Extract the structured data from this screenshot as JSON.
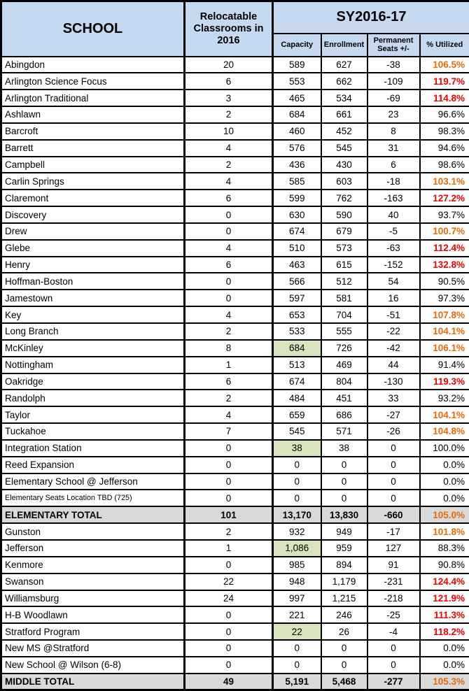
{
  "header": {
    "school": "SCHOOL",
    "relocatable": "Relocatable Classrooms in 2016",
    "sy_group": "SY2016-17",
    "capacity": "Capacity",
    "enrollment": "Enrollment",
    "permanent_seats": "Permanent Seats +/-",
    "utilized": "% Utilized"
  },
  "colors": {
    "header_bg": "#c5d9f1",
    "total_row_bg": "#d9d9d9",
    "capacity_highlight_bg": "#d7e4bc",
    "utilized_over_100_text": "#e26b0a",
    "utilized_over_110_text": "#ee0202",
    "border": "#000000"
  },
  "chart_data": {
    "type": "table",
    "title": "School Relocatable Classrooms and SY2016-17 Capacity / Enrollment / Utilization",
    "column_group": {
      "label": "SY2016-17",
      "spans": [
        "Capacity",
        "Enrollment",
        "Permanent Seats +/-",
        "% Utilized"
      ]
    },
    "columns": [
      "SCHOOL",
      "Relocatable Classrooms in 2016",
      "Capacity",
      "Enrollment",
      "Permanent Seats +/-",
      "% Utilized"
    ],
    "rows": [
      {
        "school": "Abingdon",
        "relocatable": "20",
        "capacity": "589",
        "enrollment": "627",
        "seats": "-38",
        "utilized": "106.5%",
        "util_style": "orange"
      },
      {
        "school": "Arlington Science Focus",
        "relocatable": "6",
        "capacity": "553",
        "enrollment": "662",
        "seats": "-109",
        "utilized": "119.7%",
        "util_style": "red"
      },
      {
        "school": "Arlington Traditional",
        "relocatable": "3",
        "capacity": "465",
        "enrollment": "534",
        "seats": "-69",
        "utilized": "114.8%",
        "util_style": "red"
      },
      {
        "school": "Ashlawn",
        "relocatable": "2",
        "capacity": "684",
        "enrollment": "661",
        "seats": "23",
        "utilized": "96.6%"
      },
      {
        "school": "Barcroft",
        "relocatable": "10",
        "capacity": "460",
        "enrollment": "452",
        "seats": "8",
        "utilized": "98.3%"
      },
      {
        "school": "Barrett",
        "relocatable": "4",
        "capacity": "576",
        "enrollment": "545",
        "seats": "31",
        "utilized": "94.6%"
      },
      {
        "school": "Campbell",
        "relocatable": "2",
        "capacity": "436",
        "enrollment": "430",
        "seats": "6",
        "utilized": "98.6%"
      },
      {
        "school": "Carlin Springs",
        "relocatable": "4",
        "capacity": "585",
        "enrollment": "603",
        "seats": "-18",
        "utilized": "103.1%",
        "util_style": "orange"
      },
      {
        "school": "Claremont",
        "relocatable": "6",
        "capacity": "599",
        "enrollment": "762",
        "seats": "-163",
        "utilized": "127.2%",
        "util_style": "red"
      },
      {
        "school": "Discovery",
        "relocatable": "0",
        "capacity": "630",
        "enrollment": "590",
        "seats": "40",
        "utilized": "93.7%"
      },
      {
        "school": "Drew",
        "relocatable": "0",
        "capacity": "674",
        "enrollment": "679",
        "seats": "-5",
        "utilized": "100.7%",
        "util_style": "orange"
      },
      {
        "school": "Glebe",
        "relocatable": "4",
        "capacity": "510",
        "enrollment": "573",
        "seats": "-63",
        "utilized": "112.4%",
        "util_style": "red"
      },
      {
        "school": "Henry",
        "relocatable": "6",
        "capacity": "463",
        "enrollment": "615",
        "seats": "-152",
        "utilized": "132.8%",
        "util_style": "red"
      },
      {
        "school": "Hoffman-Boston",
        "relocatable": "0",
        "capacity": "566",
        "enrollment": "512",
        "seats": "54",
        "utilized": "90.5%"
      },
      {
        "school": "Jamestown",
        "relocatable": "0",
        "capacity": "597",
        "enrollment": "581",
        "seats": "16",
        "utilized": "97.3%"
      },
      {
        "school": "Key",
        "relocatable": "4",
        "capacity": "653",
        "enrollment": "704",
        "seats": "-51",
        "utilized": "107.8%",
        "util_style": "orange"
      },
      {
        "school": "Long Branch",
        "relocatable": "2",
        "capacity": "533",
        "enrollment": "555",
        "seats": "-22",
        "utilized": "104.1%",
        "util_style": "orange"
      },
      {
        "school": "McKinley",
        "relocatable": "8",
        "capacity": "684",
        "enrollment": "726",
        "seats": "-42",
        "utilized": "106.1%",
        "util_style": "orange",
        "capacity_highlight": true
      },
      {
        "school": "Nottingham",
        "relocatable": "1",
        "capacity": "513",
        "enrollment": "469",
        "seats": "44",
        "utilized": "91.4%"
      },
      {
        "school": "Oakridge",
        "relocatable": "6",
        "capacity": "674",
        "enrollment": "804",
        "seats": "-130",
        "utilized": "119.3%",
        "util_style": "red"
      },
      {
        "school": "Randolph",
        "relocatable": "2",
        "capacity": "484",
        "enrollment": "451",
        "seats": "33",
        "utilized": "93.2%"
      },
      {
        "school": "Taylor",
        "relocatable": "4",
        "capacity": "659",
        "enrollment": "686",
        "seats": "-27",
        "utilized": "104.1%",
        "util_style": "orange"
      },
      {
        "school": "Tuckahoe",
        "relocatable": "7",
        "capacity": "545",
        "enrollment": "571",
        "seats": "-26",
        "utilized": "104.8%",
        "util_style": "orange"
      },
      {
        "school": "Integration Station",
        "relocatable": "0",
        "capacity": "38",
        "enrollment": "38",
        "seats": "0",
        "utilized": "100.0%",
        "capacity_highlight": true
      },
      {
        "school": "Reed Expansion",
        "relocatable": "0",
        "capacity": "0",
        "enrollment": "0",
        "seats": "0",
        "utilized": "0.0%"
      },
      {
        "school": "Elementary School @ Jefferson",
        "relocatable": "0",
        "capacity": "0",
        "enrollment": "0",
        "seats": "0",
        "utilized": "0.0%"
      },
      {
        "school": "Elementary Seats Location TBD (725)",
        "relocatable": "0",
        "capacity": "0",
        "enrollment": "0",
        "seats": "0",
        "utilized": "0.0%",
        "small_name": true
      },
      {
        "school": "ELEMENTARY TOTAL",
        "relocatable": "101",
        "capacity": "13,170",
        "enrollment": "13,830",
        "seats": "-660",
        "utilized": "105.0%",
        "util_style": "orange",
        "total": true
      },
      {
        "school": "Gunston",
        "relocatable": "2",
        "capacity": "932",
        "enrollment": "949",
        "seats": "-17",
        "utilized": "101.8%",
        "util_style": "orange"
      },
      {
        "school": "Jefferson",
        "relocatable": "1",
        "capacity": "1,086",
        "enrollment": "959",
        "seats": "127",
        "utilized": "88.3%",
        "capacity_highlight": true
      },
      {
        "school": "Kenmore",
        "relocatable": "0",
        "capacity": "985",
        "enrollment": "894",
        "seats": "91",
        "utilized": "90.8%"
      },
      {
        "school": "Swanson",
        "relocatable": "22",
        "capacity": "948",
        "enrollment": "1,179",
        "seats": "-231",
        "utilized": "124.4%",
        "util_style": "red"
      },
      {
        "school": "Williamsburg",
        "relocatable": "24",
        "capacity": "997",
        "enrollment": "1,215",
        "seats": "-218",
        "utilized": "121.9%",
        "util_style": "red"
      },
      {
        "school": "H-B Woodlawn",
        "relocatable": "0",
        "capacity": "221",
        "enrollment": "246",
        "seats": "-25",
        "utilized": "111.3%",
        "util_style": "red"
      },
      {
        "school": "Stratford Program",
        "relocatable": "0",
        "capacity": "22",
        "enrollment": "26",
        "seats": "-4",
        "utilized": "118.2%",
        "util_style": "red",
        "capacity_highlight": true
      },
      {
        "school": "New MS @Stratford",
        "relocatable": "0",
        "capacity": "0",
        "enrollment": "0",
        "seats": "0",
        "utilized": "0.0%"
      },
      {
        "school": "New School @ Wilson (6-8)",
        "relocatable": "0",
        "capacity": "0",
        "enrollment": "0",
        "seats": "0",
        "utilized": "0.0%"
      },
      {
        "school": "MIDDLE TOTAL",
        "relocatable": "49",
        "capacity": "5,191",
        "enrollment": "5,468",
        "seats": "-277",
        "utilized": "105.3%",
        "util_style": "orange",
        "total": true
      }
    ]
  }
}
